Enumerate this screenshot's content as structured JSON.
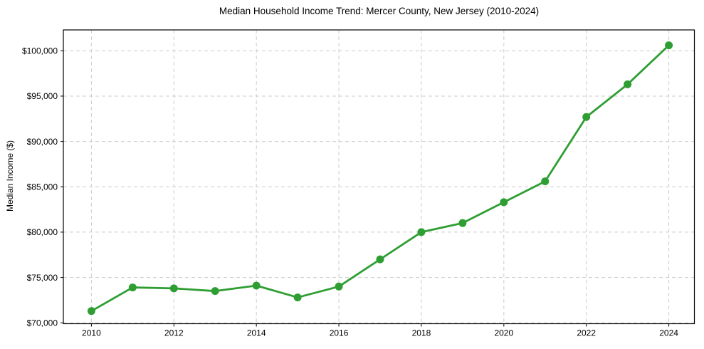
{
  "page": {
    "background_color": "#ffffff"
  },
  "chart_data": {
    "type": "line",
    "title": "Median Household Income Trend: Mercer County, New Jersey (2010-2024)",
    "xlabel": "",
    "ylabel": "Median Income ($)",
    "x": [
      2010,
      2011,
      2012,
      2013,
      2014,
      2015,
      2016,
      2017,
      2018,
      2019,
      2020,
      2021,
      2022,
      2023,
      2024
    ],
    "values": [
      71300,
      73900,
      73800,
      73500,
      74100,
      72800,
      74000,
      77000,
      80000,
      81000,
      83300,
      85600,
      92700,
      96300,
      100600
    ],
    "series_name": "Median Household Income",
    "xlim": [
      2009.32,
      2024.62
    ],
    "ylim": [
      69900,
      102300
    ],
    "x_ticks": [
      2010,
      2012,
      2014,
      2016,
      2018,
      2020,
      2022,
      2024
    ],
    "x_tick_labels": [
      "2010",
      "2012",
      "2014",
      "2016",
      "2018",
      "2020",
      "2022",
      "2024"
    ],
    "y_ticks": [
      70000,
      75000,
      80000,
      85000,
      90000,
      95000,
      100000
    ],
    "y_tick_labels": [
      "$70,000",
      "$75,000",
      "$80,000",
      "$85,000",
      "$90,000",
      "$95,000",
      "$100,000"
    ],
    "grid": true,
    "grid_line_style": "dashed",
    "legend_position": "none",
    "colors": {
      "line": "#2e9e33",
      "marker": "#2e9e33",
      "grid": "#cccccc",
      "axis": "#000000",
      "text": "#000000",
      "background": "#ffffff"
    },
    "marker": "circle",
    "marker_radius": 5.5,
    "line_width": 2.8
  }
}
